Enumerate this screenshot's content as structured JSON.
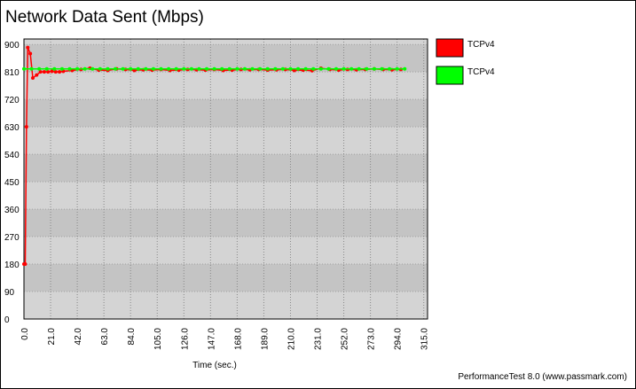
{
  "chart_data": {
    "type": "line",
    "title": "Network Data Sent (Mbps)",
    "x_label": "Time (sec.)",
    "footer": "PerformanceTest 8.0 (www.passmark.com)",
    "xlim": [
      0,
      318
    ],
    "ylim": [
      0,
      918
    ],
    "xticks": [
      {
        "value": 0,
        "label": "0.0"
      },
      {
        "value": 21,
        "label": "21.0"
      },
      {
        "value": 42,
        "label": "42.0"
      },
      {
        "value": 63,
        "label": "63.0"
      },
      {
        "value": 84,
        "label": "84.0"
      },
      {
        "value": 105,
        "label": "105.0"
      },
      {
        "value": 126,
        "label": "126.0"
      },
      {
        "value": 147,
        "label": "147.0"
      },
      {
        "value": 168,
        "label": "168.0"
      },
      {
        "value": 189,
        "label": "189.0"
      },
      {
        "value": 210,
        "label": "210.0"
      },
      {
        "value": 231,
        "label": "231.0"
      },
      {
        "value": 252,
        "label": "252.0"
      },
      {
        "value": 273,
        "label": "273.0"
      },
      {
        "value": 294,
        "label": "294.0"
      },
      {
        "value": 315,
        "label": "315.0"
      }
    ],
    "yticks": [
      0,
      90,
      180,
      270,
      360,
      450,
      540,
      630,
      720,
      810,
      900
    ],
    "grid": true,
    "series": [
      {
        "name": "TCPv4",
        "color": "#ff0000",
        "x": [
          0,
          1,
          2,
          3,
          5,
          7,
          10,
          13,
          16,
          19,
          22,
          25,
          28,
          31,
          38,
          45,
          52,
          59,
          66,
          73,
          80,
          87,
          94,
          101,
          108,
          115,
          122,
          129,
          136,
          143,
          150,
          157,
          164,
          171,
          178,
          185,
          192,
          199,
          206,
          213,
          220,
          227,
          234,
          241,
          248,
          255,
          262,
          269,
          276,
          283,
          290,
          297
        ],
        "values": [
          180,
          180,
          630,
          890,
          870,
          790,
          800,
          810,
          810,
          810,
          812,
          810,
          810,
          812,
          815,
          818,
          822,
          816,
          815,
          820,
          818,
          815,
          817,
          816,
          818,
          815,
          816,
          818,
          817,
          816,
          818,
          815,
          816,
          818,
          817,
          818,
          816,
          817,
          818,
          815,
          816,
          814,
          822,
          818,
          816,
          818,
          817,
          818,
          820,
          818,
          817,
          818
        ]
      },
      {
        "name": "TCPv4",
        "color": "#00ff00",
        "x": [
          0,
          6,
          12,
          18,
          24,
          30,
          36,
          42,
          48,
          54,
          60,
          66,
          72,
          78,
          84,
          90,
          96,
          102,
          108,
          114,
          120,
          126,
          132,
          138,
          144,
          150,
          156,
          162,
          168,
          174,
          180,
          186,
          192,
          198,
          204,
          210,
          216,
          222,
          228,
          234,
          240,
          246,
          252,
          258,
          264,
          270,
          276,
          282,
          288,
          294,
          300
        ],
        "values": [
          820,
          820,
          820,
          820,
          820,
          820,
          820,
          820,
          820,
          820,
          820,
          820,
          820,
          820,
          820,
          820,
          820,
          820,
          820,
          820,
          820,
          820,
          820,
          820,
          820,
          820,
          820,
          820,
          820,
          820,
          820,
          820,
          820,
          820,
          820,
          820,
          820,
          820,
          820,
          820,
          820,
          820,
          820,
          820,
          820,
          820,
          820,
          820,
          820,
          820,
          820
        ]
      }
    ]
  }
}
